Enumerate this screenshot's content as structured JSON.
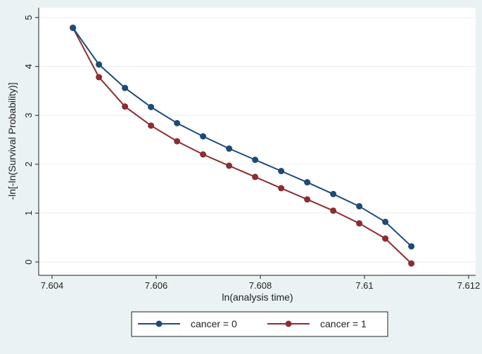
{
  "chart_data": {
    "type": "line",
    "title": "",
    "xlabel": "ln(analysis time)",
    "ylabel": "-ln[-ln(Survival Probability)]",
    "xlim": [
      7.604,
      7.612
    ],
    "ylim": [
      0,
      5
    ],
    "xticks": [
      7.604,
      7.606,
      7.608,
      7.61,
      7.612
    ],
    "xtick_labels": [
      "7.604",
      "7.606",
      "7.608",
      "7.61",
      "7.612"
    ],
    "yticks": [
      0,
      1,
      2,
      3,
      4,
      5
    ],
    "ytick_labels": [
      "0",
      "1",
      "2",
      "3",
      "4",
      "5"
    ],
    "grid": true,
    "legend_position": "bottom",
    "series": [
      {
        "name": "cancer = 0",
        "color": "#1e4a78",
        "x": [
          7.6044,
          7.6049,
          7.6054,
          7.6059,
          7.6064,
          7.6069,
          7.6074,
          7.6079,
          7.6084,
          7.6089,
          7.6094,
          7.6099,
          7.6104,
          7.6109
        ],
        "values": [
          4.79,
          4.04,
          3.56,
          3.17,
          2.84,
          2.57,
          2.32,
          2.09,
          1.86,
          1.63,
          1.39,
          1.14,
          0.82,
          0.32
        ]
      },
      {
        "name": "cancer = 1",
        "color": "#8c2d32",
        "x": [
          7.6044,
          7.6049,
          7.6054,
          7.6059,
          7.6064,
          7.6069,
          7.6074,
          7.6079,
          7.6084,
          7.6089,
          7.6094,
          7.6099,
          7.6104,
          7.6109
        ],
        "values": [
          4.79,
          3.78,
          3.18,
          2.79,
          2.47,
          2.2,
          1.97,
          1.74,
          1.51,
          1.28,
          1.05,
          0.79,
          0.48,
          -0.03
        ]
      }
    ]
  }
}
